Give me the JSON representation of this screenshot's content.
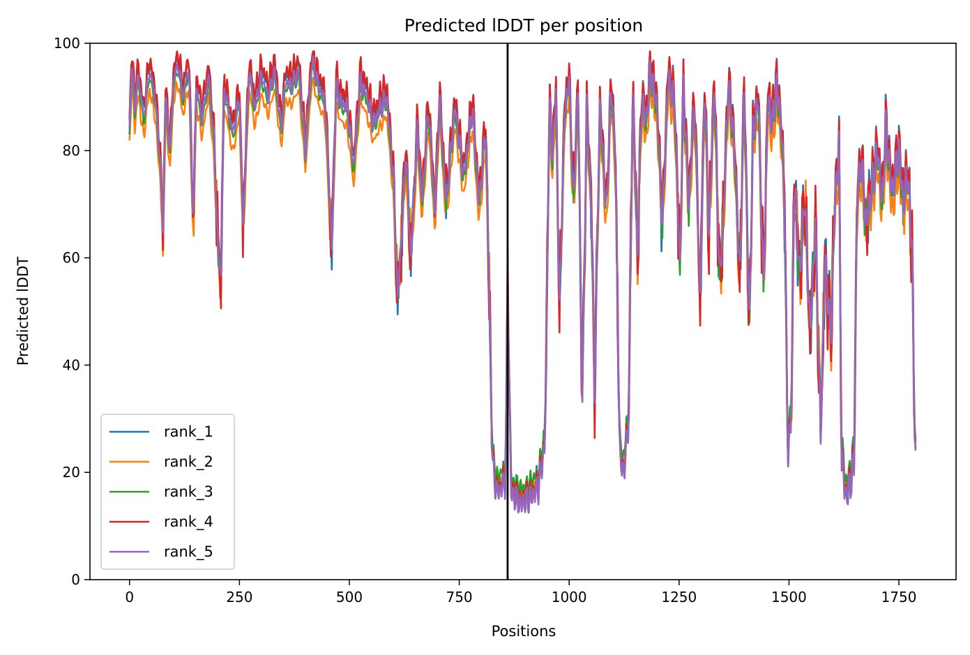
{
  "chart_data": {
    "type": "line",
    "title": "Predicted lDDT per position",
    "xlabel": "Positions",
    "ylabel": "Predicted lDDT",
    "xlim": [
      -90,
      1880
    ],
    "ylim": [
      0,
      100
    ],
    "xticks": [
      0,
      250,
      500,
      750,
      1000,
      1250,
      1500,
      1750
    ],
    "yticks": [
      0,
      20,
      40,
      60,
      80,
      100
    ],
    "grid": false,
    "legend_position": "lower-left",
    "vline": {
      "x": 860,
      "color": "#000000"
    },
    "series": [
      {
        "name": "rank_1",
        "color": "#1f77b4",
        "offset": [
          0.6,
          3.1,
          1.3
        ]
      },
      {
        "name": "rank_2",
        "color": "#ff7f0e",
        "offset": [
          -1.4,
          4.7,
          2.1
        ]
      },
      {
        "name": "rank_3",
        "color": "#2ca02c",
        "offset": [
          -0.4,
          1.9,
          3.3
        ]
      },
      {
        "name": "rank_4",
        "color": "#d62728",
        "offset": [
          0.9,
          5.3,
          0.7
        ]
      },
      {
        "name": "rank_5",
        "color": "#9467bd",
        "offset": [
          0.0,
          0.0,
          0.0
        ]
      }
    ],
    "profile": [
      [
        0,
        84
      ],
      [
        5,
        97
      ],
      [
        12,
        88
      ],
      [
        20,
        94
      ],
      [
        32,
        86
      ],
      [
        45,
        95
      ],
      [
        58,
        90
      ],
      [
        70,
        78
      ],
      [
        76,
        65
      ],
      [
        82,
        90
      ],
      [
        92,
        80
      ],
      [
        100,
        93
      ],
      [
        110,
        96
      ],
      [
        122,
        90
      ],
      [
        135,
        96
      ],
      [
        145,
        66
      ],
      [
        152,
        92
      ],
      [
        165,
        86
      ],
      [
        180,
        94
      ],
      [
        192,
        82
      ],
      [
        202,
        60
      ],
      [
        208,
        57
      ],
      [
        215,
        92
      ],
      [
        235,
        83
      ],
      [
        250,
        90
      ],
      [
        258,
        66
      ],
      [
        272,
        95
      ],
      [
        285,
        88
      ],
      [
        300,
        94
      ],
      [
        315,
        90
      ],
      [
        330,
        95
      ],
      [
        345,
        84
      ],
      [
        355,
        93
      ],
      [
        368,
        92
      ],
      [
        385,
        95
      ],
      [
        400,
        80
      ],
      [
        415,
        97
      ],
      [
        430,
        92
      ],
      [
        445,
        89
      ],
      [
        460,
        62
      ],
      [
        470,
        92
      ],
      [
        480,
        89
      ],
      [
        495,
        88
      ],
      [
        510,
        77
      ],
      [
        525,
        93
      ],
      [
        540,
        90
      ],
      [
        555,
        85
      ],
      [
        570,
        88
      ],
      [
        585,
        90
      ],
      [
        600,
        75
      ],
      [
        610,
        52
      ],
      [
        620,
        66
      ],
      [
        628,
        80
      ],
      [
        640,
        60
      ],
      [
        655,
        85
      ],
      [
        665,
        70
      ],
      [
        680,
        88
      ],
      [
        695,
        68
      ],
      [
        705,
        90
      ],
      [
        720,
        70
      ],
      [
        740,
        88
      ],
      [
        760,
        75
      ],
      [
        780,
        88
      ],
      [
        795,
        70
      ],
      [
        810,
        84
      ],
      [
        818,
        55
      ],
      [
        825,
        22
      ],
      [
        835,
        16
      ],
      [
        845,
        17
      ],
      [
        855,
        18
      ],
      [
        860,
        54
      ],
      [
        868,
        16
      ],
      [
        890,
        14
      ],
      [
        910,
        15
      ],
      [
        930,
        17
      ],
      [
        945,
        25
      ],
      [
        955,
        88
      ],
      [
        962,
        79
      ],
      [
        970,
        91
      ],
      [
        978,
        50
      ],
      [
        990,
        88
      ],
      [
        1000,
        93
      ],
      [
        1010,
        70
      ],
      [
        1020,
        92
      ],
      [
        1030,
        33
      ],
      [
        1040,
        88
      ],
      [
        1050,
        70
      ],
      [
        1058,
        36
      ],
      [
        1070,
        88
      ],
      [
        1085,
        68
      ],
      [
        1095,
        92
      ],
      [
        1105,
        80
      ],
      [
        1115,
        22
      ],
      [
        1125,
        20
      ],
      [
        1135,
        30
      ],
      [
        1145,
        92
      ],
      [
        1155,
        60
      ],
      [
        1165,
        90
      ],
      [
        1175,
        85
      ],
      [
        1185,
        95
      ],
      [
        1200,
        88
      ],
      [
        1212,
        66
      ],
      [
        1225,
        94
      ],
      [
        1240,
        88
      ],
      [
        1252,
        58
      ],
      [
        1260,
        92
      ],
      [
        1272,
        70
      ],
      [
        1285,
        90
      ],
      [
        1298,
        52
      ],
      [
        1308,
        92
      ],
      [
        1318,
        64
      ],
      [
        1330,
        93
      ],
      [
        1342,
        56
      ],
      [
        1350,
        66
      ],
      [
        1362,
        92
      ],
      [
        1375,
        82
      ],
      [
        1388,
        56
      ],
      [
        1398,
        92
      ],
      [
        1410,
        47
      ],
      [
        1418,
        83
      ],
      [
        1430,
        90
      ],
      [
        1442,
        54
      ],
      [
        1452,
        90
      ],
      [
        1462,
        85
      ],
      [
        1472,
        92
      ],
      [
        1482,
        85
      ],
      [
        1490,
        70
      ],
      [
        1497,
        23
      ],
      [
        1505,
        30
      ],
      [
        1512,
        75
      ],
      [
        1525,
        56
      ],
      [
        1535,
        72
      ],
      [
        1548,
        46
      ],
      [
        1560,
        66
      ],
      [
        1572,
        27
      ],
      [
        1582,
        60
      ],
      [
        1595,
        45
      ],
      [
        1605,
        72
      ],
      [
        1614,
        80
      ],
      [
        1620,
        22
      ],
      [
        1630,
        15
      ],
      [
        1640,
        18
      ],
      [
        1648,
        22
      ],
      [
        1655,
        72
      ],
      [
        1665,
        78
      ],
      [
        1675,
        66
      ],
      [
        1690,
        74
      ],
      [
        1702,
        80
      ],
      [
        1712,
        70
      ],
      [
        1720,
        84
      ],
      [
        1735,
        72
      ],
      [
        1750,
        80
      ],
      [
        1760,
        70
      ],
      [
        1770,
        76
      ],
      [
        1780,
        62
      ],
      [
        1785,
        30
      ],
      [
        1789,
        18
      ]
    ]
  }
}
